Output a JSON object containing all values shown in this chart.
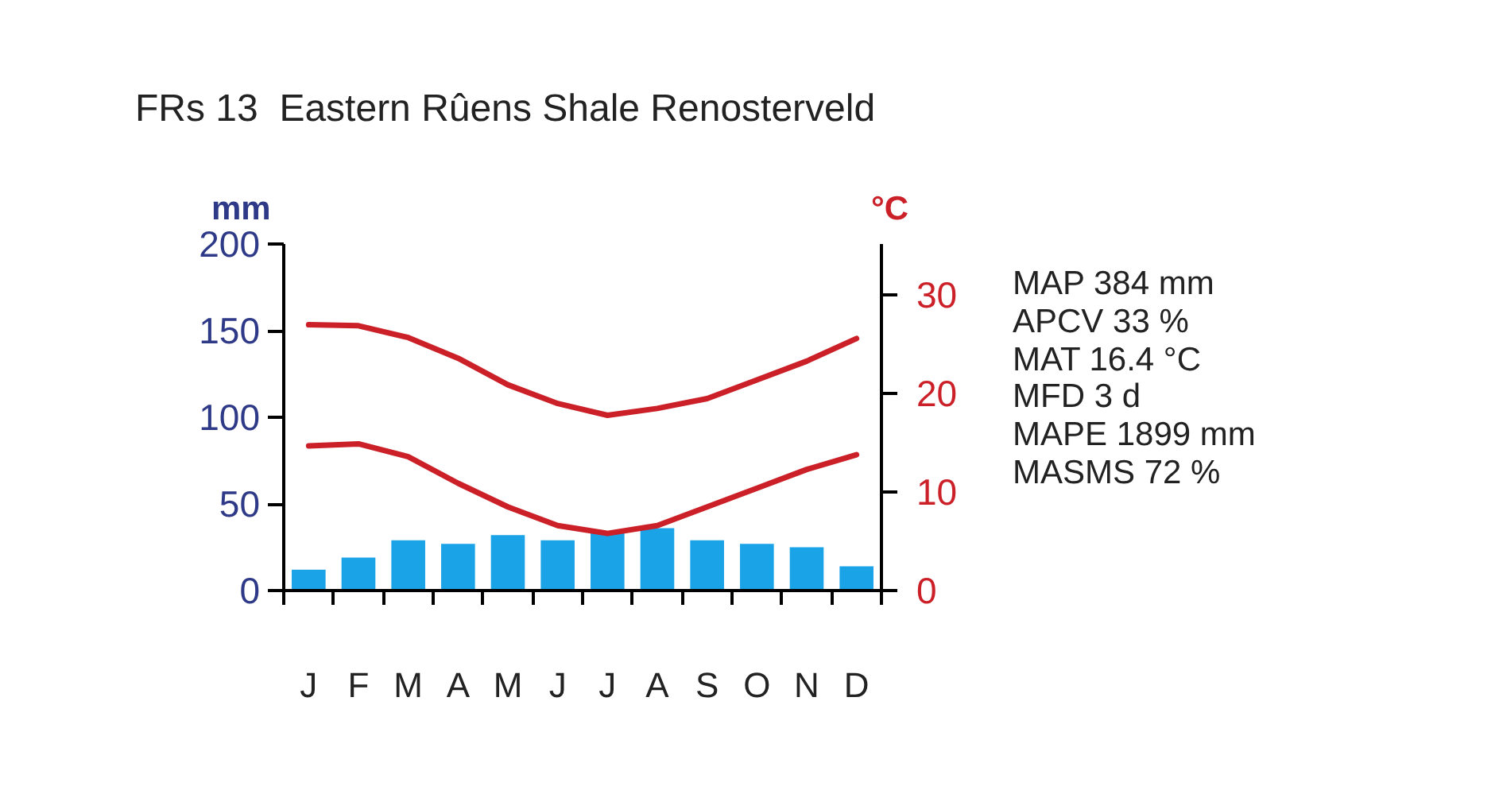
{
  "chart_data": {
    "type": "bar",
    "title": "FRs 13  Eastern Rûens Shale Renosterveld",
    "categories": [
      "J",
      "F",
      "M",
      "A",
      "M",
      "J",
      "J",
      "A",
      "S",
      "O",
      "N",
      "D"
    ],
    "ylabel": "mm",
    "y2label": "°C",
    "ylim": [
      0,
      200
    ],
    "yticks": [
      0,
      50,
      100,
      150,
      200
    ],
    "y2lim": [
      0,
      35.2
    ],
    "y2ticks": [
      0,
      10,
      20,
      30
    ],
    "grid": false,
    "series": [
      {
        "color": "#1ba3e8",
        "values": [
          12,
          19,
          29,
          27,
          32,
          29,
          33,
          36,
          29,
          27,
          25,
          14
        ]
      },
      {
        "type": "line",
        "axis": "y2",
        "color": "#cc2029",
        "values": [
          27.0,
          26.9,
          25.7,
          23.6,
          20.9,
          19.0,
          17.8,
          18.5,
          19.5,
          21.4,
          23.3,
          25.6
        ]
      },
      {
        "type": "line",
        "axis": "y2",
        "color": "#cc2029",
        "values": [
          14.7,
          14.9,
          13.6,
          10.9,
          8.5,
          6.6,
          5.8,
          6.6,
          8.5,
          10.4,
          12.3,
          13.8
        ]
      }
    ],
    "annotations": [
      "MAP 384 mm",
      "APCV 33 %",
      "MAT 16.4 °C",
      "MFD 3 d",
      "MAPE 1899 mm",
      "MASMS 72 %"
    ]
  }
}
